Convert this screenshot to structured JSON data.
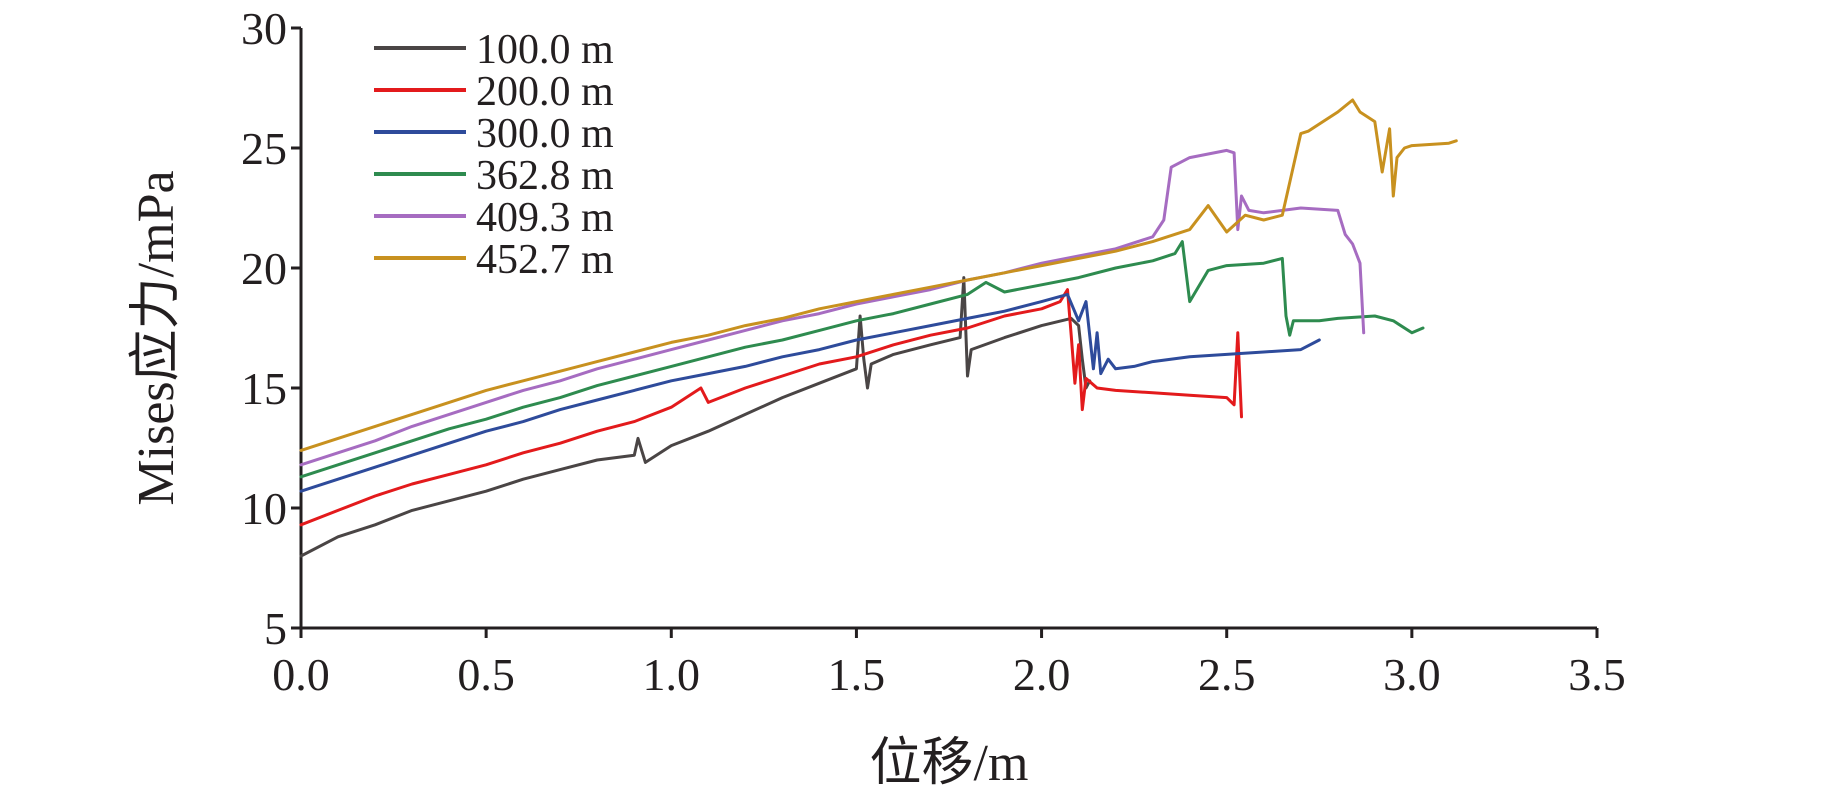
{
  "chart_data": {
    "type": "line",
    "title": "",
    "xlabel": "位移/m",
    "ylabel": "Mises应力/mPa",
    "xlim": [
      0,
      3.5
    ],
    "ylim": [
      5,
      30
    ],
    "xticks": [
      0.0,
      0.5,
      1.0,
      1.5,
      2.0,
      2.5,
      3.0,
      3.5
    ],
    "yticks": [
      5,
      10,
      15,
      20,
      25,
      30
    ],
    "xtick_labels": [
      "0.0",
      "0.5",
      "1.0",
      "1.5",
      "2.0",
      "2.5",
      "3.0",
      "3.5"
    ],
    "ytick_labels": [
      "5",
      "10",
      "15",
      "20",
      "25",
      "30"
    ],
    "grid": false,
    "legend_position": "top-left",
    "series": [
      {
        "name": "100.0 m",
        "color": "#4a4545",
        "x": [
          0,
          0.1,
          0.2,
          0.3,
          0.4,
          0.5,
          0.6,
          0.7,
          0.8,
          0.9,
          0.91,
          0.93,
          1.0,
          1.1,
          1.2,
          1.3,
          1.4,
          1.5,
          1.51,
          1.52,
          1.53,
          1.54,
          1.6,
          1.7,
          1.78,
          1.79,
          1.8,
          1.81,
          1.9,
          2.0,
          2.08,
          2.1,
          2.11,
          2.12,
          2.13
        ],
        "y": [
          8.0,
          8.8,
          9.3,
          9.9,
          10.3,
          10.7,
          11.2,
          11.6,
          12.0,
          12.2,
          12.9,
          11.9,
          12.6,
          13.2,
          13.9,
          14.6,
          15.2,
          15.8,
          18.0,
          16.2,
          15.0,
          16.0,
          16.4,
          16.8,
          17.1,
          19.6,
          15.5,
          16.6,
          17.1,
          17.6,
          17.9,
          17.6,
          16.2,
          15.0,
          15.3
        ]
      },
      {
        "name": "200.0 m",
        "color": "#e31a1c",
        "x": [
          0,
          0.1,
          0.2,
          0.3,
          0.4,
          0.5,
          0.6,
          0.7,
          0.8,
          0.9,
          1.0,
          1.08,
          1.1,
          1.2,
          1.3,
          1.4,
          1.5,
          1.6,
          1.7,
          1.8,
          1.9,
          2.0,
          2.05,
          2.07,
          2.08,
          2.09,
          2.1,
          2.11,
          2.12,
          2.15,
          2.2,
          2.3,
          2.4,
          2.5,
          2.52,
          2.53,
          2.54
        ],
        "y": [
          9.3,
          9.9,
          10.5,
          11.0,
          11.4,
          11.8,
          12.3,
          12.7,
          13.2,
          13.6,
          14.2,
          15.0,
          14.4,
          15.0,
          15.5,
          16.0,
          16.3,
          16.8,
          17.2,
          17.5,
          18.0,
          18.3,
          18.6,
          19.1,
          17.2,
          15.2,
          16.8,
          14.1,
          15.4,
          15.0,
          14.9,
          14.8,
          14.7,
          14.6,
          14.3,
          17.3,
          13.8
        ]
      },
      {
        "name": "300.0 m",
        "color": "#2e4b9b",
        "x": [
          0,
          0.1,
          0.2,
          0.3,
          0.4,
          0.5,
          0.6,
          0.7,
          0.8,
          0.9,
          1.0,
          1.1,
          1.2,
          1.3,
          1.4,
          1.5,
          1.6,
          1.7,
          1.8,
          1.9,
          2.0,
          2.07,
          2.1,
          2.12,
          2.14,
          2.15,
          2.16,
          2.18,
          2.2,
          2.25,
          2.3,
          2.4,
          2.5,
          2.6,
          2.7,
          2.75
        ],
        "y": [
          10.7,
          11.2,
          11.7,
          12.2,
          12.7,
          13.2,
          13.6,
          14.1,
          14.5,
          14.9,
          15.3,
          15.6,
          15.9,
          16.3,
          16.6,
          17.0,
          17.3,
          17.6,
          17.9,
          18.2,
          18.6,
          18.9,
          17.8,
          18.6,
          15.8,
          17.3,
          15.6,
          16.2,
          15.8,
          15.9,
          16.1,
          16.3,
          16.4,
          16.5,
          16.6,
          17.0
        ]
      },
      {
        "name": "362.8 m",
        "color": "#2e8b4f",
        "x": [
          0,
          0.1,
          0.2,
          0.3,
          0.4,
          0.5,
          0.6,
          0.7,
          0.8,
          0.9,
          1.0,
          1.1,
          1.2,
          1.3,
          1.4,
          1.5,
          1.6,
          1.7,
          1.8,
          1.85,
          1.9,
          2.0,
          2.1,
          2.2,
          2.3,
          2.36,
          2.38,
          2.4,
          2.45,
          2.5,
          2.6,
          2.65,
          2.66,
          2.67,
          2.68,
          2.75,
          2.8,
          2.9,
          2.95,
          3.0,
          3.03
        ],
        "y": [
          11.3,
          11.8,
          12.3,
          12.8,
          13.3,
          13.7,
          14.2,
          14.6,
          15.1,
          15.5,
          15.9,
          16.3,
          16.7,
          17.0,
          17.4,
          17.8,
          18.1,
          18.5,
          18.9,
          19.4,
          19.0,
          19.3,
          19.6,
          20.0,
          20.3,
          20.6,
          21.1,
          18.6,
          19.9,
          20.1,
          20.2,
          20.4,
          18.0,
          17.2,
          17.8,
          17.8,
          17.9,
          18.0,
          17.8,
          17.3,
          17.5
        ]
      },
      {
        "name": "409.3 m",
        "color": "#a66cc1",
        "x": [
          0,
          0.1,
          0.2,
          0.3,
          0.4,
          0.5,
          0.6,
          0.7,
          0.8,
          0.9,
          1.0,
          1.1,
          1.2,
          1.3,
          1.4,
          1.5,
          1.6,
          1.7,
          1.8,
          1.9,
          2.0,
          2.1,
          2.2,
          2.3,
          2.33,
          2.35,
          2.4,
          2.5,
          2.52,
          2.53,
          2.54,
          2.56,
          2.6,
          2.7,
          2.8,
          2.82,
          2.84,
          2.86,
          2.87
        ],
        "y": [
          11.8,
          12.3,
          12.8,
          13.4,
          13.9,
          14.4,
          14.9,
          15.3,
          15.8,
          16.2,
          16.6,
          17.0,
          17.4,
          17.8,
          18.1,
          18.5,
          18.8,
          19.1,
          19.5,
          19.8,
          20.2,
          20.5,
          20.8,
          21.3,
          22.0,
          24.2,
          24.6,
          24.9,
          24.8,
          21.6,
          23.0,
          22.4,
          22.3,
          22.5,
          22.4,
          21.4,
          21.0,
          20.2,
          17.3
        ]
      },
      {
        "name": "452.7 m",
        "color": "#c8911f",
        "x": [
          0,
          0.1,
          0.2,
          0.3,
          0.4,
          0.5,
          0.6,
          0.7,
          0.8,
          0.9,
          1.0,
          1.1,
          1.2,
          1.3,
          1.4,
          1.5,
          1.6,
          1.7,
          1.8,
          1.9,
          2.0,
          2.1,
          2.2,
          2.3,
          2.4,
          2.45,
          2.5,
          2.55,
          2.6,
          2.65,
          2.7,
          2.72,
          2.75,
          2.8,
          2.84,
          2.86,
          2.9,
          2.92,
          2.94,
          2.95,
          2.96,
          2.98,
          3.0,
          3.1,
          3.12
        ],
        "y": [
          12.4,
          12.9,
          13.4,
          13.9,
          14.4,
          14.9,
          15.3,
          15.7,
          16.1,
          16.5,
          16.9,
          17.2,
          17.6,
          17.9,
          18.3,
          18.6,
          18.9,
          19.2,
          19.5,
          19.8,
          20.1,
          20.4,
          20.7,
          21.1,
          21.6,
          22.6,
          21.5,
          22.2,
          22.0,
          22.2,
          25.6,
          25.7,
          26.0,
          26.5,
          27.0,
          26.5,
          26.1,
          24.0,
          25.8,
          23.0,
          24.6,
          25.0,
          25.1,
          25.2,
          25.3
        ]
      }
    ]
  }
}
